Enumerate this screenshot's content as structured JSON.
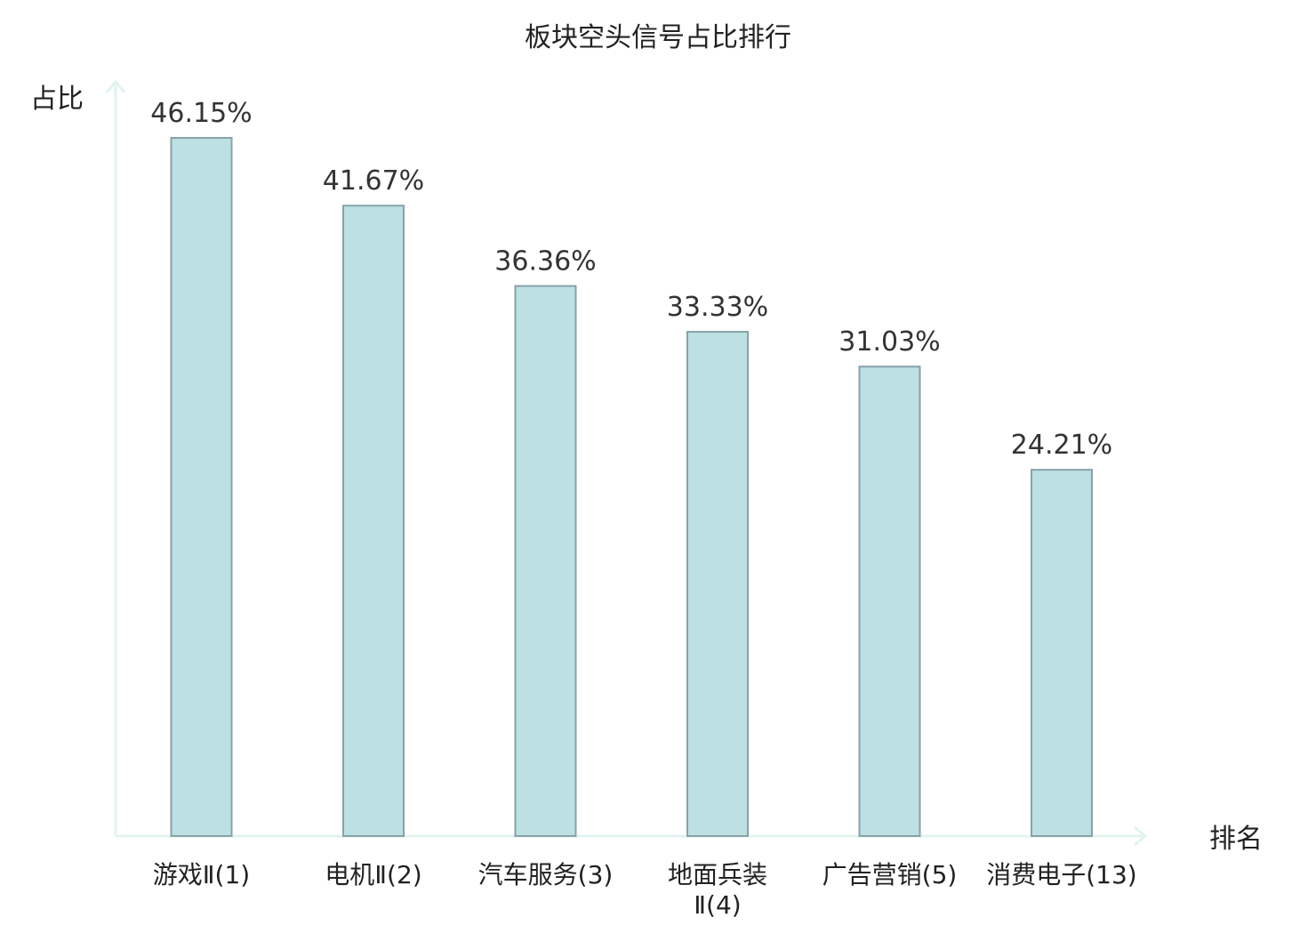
{
  "chart_data": {
    "type": "bar",
    "title": "板块空头信号占比排行",
    "ylabel": "占比",
    "xlabel": "排名",
    "categories": [
      "游戏Ⅱ(1)",
      "电机Ⅱ(2)",
      "汽车服务(3)",
      "地面兵装Ⅱ(4)",
      "广告营销(5)",
      "消费电子(13)"
    ],
    "category_lines": [
      [
        "游戏Ⅱ(1)"
      ],
      [
        "电机Ⅱ(2)"
      ],
      [
        "汽车服务(3)"
      ],
      [
        "地面兵装",
        "Ⅱ(4)"
      ],
      [
        "广告营销(5)"
      ],
      [
        "消费电子(13)"
      ]
    ],
    "values": [
      46.15,
      41.67,
      36.36,
      33.33,
      31.03,
      24.21
    ],
    "value_labels": [
      "46.15%",
      "41.67%",
      "36.36%",
      "33.33%",
      "31.03%",
      "24.21%"
    ],
    "highlight_index": 5,
    "ylim": [
      0,
      50
    ],
    "grid": false,
    "legend": "none",
    "colors": {
      "bar_fill": "#bde0e3",
      "bar_stroke": "#86a3a7",
      "axis": "#e1f3f0",
      "highlight_text": "#e02020",
      "text": "#222222"
    }
  }
}
